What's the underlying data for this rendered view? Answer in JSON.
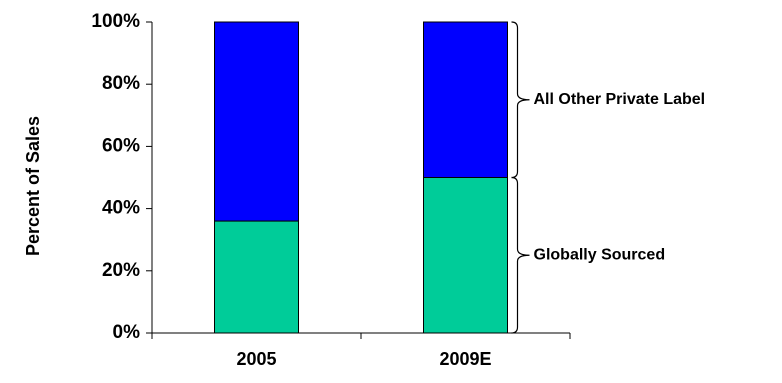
{
  "chart_data": {
    "type": "bar",
    "stacked": true,
    "categories": [
      "2005",
      "2009E"
    ],
    "series": [
      {
        "name": "Globally Sourced",
        "values": [
          36,
          50
        ],
        "color": "#00CC99"
      },
      {
        "name": "All Other Private Label",
        "values": [
          64,
          50
        ],
        "color": "#0000FF"
      }
    ],
    "ylabel": "Percent of Sales",
    "ylim": [
      0,
      100
    ],
    "yticks": [
      "0%",
      "20%",
      "40%",
      "60%",
      "80%",
      "100%"
    ],
    "grid": false,
    "legend": "brace annotations right of last bar"
  }
}
